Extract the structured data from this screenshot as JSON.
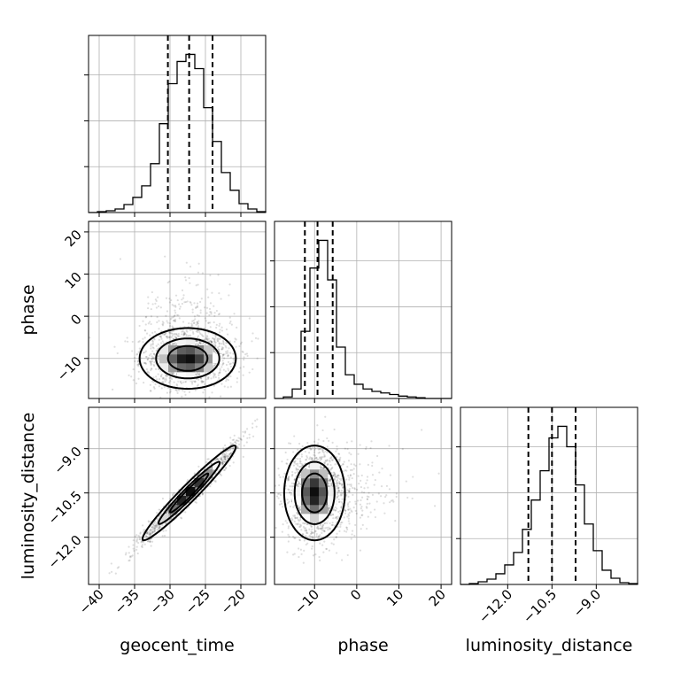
{
  "chart_data": {
    "type": "corner",
    "parameters": [
      "geocent_time",
      "phase",
      "luminosity_distance"
    ],
    "axis_labels": {
      "x": [
        "geocent_time",
        "phase",
        "luminosity_distance"
      ],
      "y_row2": "phase",
      "y_row3": "luminosity_distance"
    },
    "ranges": {
      "geocent_time": [
        -41.5,
        -16.5
      ],
      "phase": [
        -19.5,
        22.5
      ],
      "luminosity_distance": [
        -13.6,
        -7.6
      ]
    },
    "ticks": {
      "geocent_time": {
        "values": [
          -40,
          -35,
          -30,
          -25,
          -20
        ],
        "labels": [
          "−40",
          "−35",
          "−30",
          "−25",
          "−20"
        ]
      },
      "phase_x": {
        "values": [
          -10,
          0,
          10,
          20
        ],
        "labels": [
          "−10",
          "0",
          "10",
          "20"
        ]
      },
      "phase_y": {
        "values": [
          -10,
          0,
          10,
          20
        ],
        "labels": [
          "−10",
          "0",
          "10",
          "20"
        ]
      },
      "luminosity_distance_x": {
        "values": [
          -12.0,
          -10.5,
          -9.0
        ],
        "labels": [
          "−12.0",
          "−10.5",
          "−9.0"
        ]
      },
      "luminosity_distance_y": {
        "values": [
          -12.0,
          -10.5,
          -9.0
        ],
        "labels": [
          "−12.0",
          "−10.5",
          "−9.0"
        ]
      }
    },
    "histograms": {
      "geocent_time": {
        "bin_edges": [
          -41.5,
          -40.25,
          -39.0,
          -37.75,
          -36.5,
          -35.25,
          -34.0,
          -32.75,
          -31.5,
          -30.25,
          -29.0,
          -27.75,
          -26.5,
          -25.25,
          -24.0,
          -22.75,
          -21.5,
          -20.25,
          -19.0,
          -17.75,
          -16.5
        ],
        "counts": [
          0,
          1,
          2,
          4,
          9,
          17,
          30,
          55,
          100,
          145,
          170,
          178,
          162,
          118,
          80,
          45,
          25,
          10,
          4,
          1
        ],
        "quantiles": [
          -30.3,
          -27.3,
          -24.0
        ]
      },
      "phase": {
        "bin_edges": [
          -19.5,
          -17.4,
          -15.3,
          -13.2,
          -11.1,
          -9.0,
          -6.9,
          -4.8,
          -2.7,
          -0.6,
          1.5,
          3.6,
          5.7,
          7.8,
          9.9,
          12.0,
          14.1,
          16.2,
          18.3,
          20.4,
          22.5
        ],
        "counts": [
          0,
          2,
          12,
          85,
          165,
          200,
          150,
          65,
          30,
          18,
          12,
          9,
          7,
          5,
          3,
          2,
          1,
          0,
          0,
          0
        ],
        "quantiles": [
          -12.3,
          -9.3,
          -5.7
        ]
      },
      "luminosity_distance": {
        "bin_edges": [
          -13.6,
          -13.3,
          -13.0,
          -12.7,
          -12.4,
          -12.1,
          -11.8,
          -11.5,
          -11.2,
          -10.9,
          -10.6,
          -10.3,
          -10.0,
          -9.7,
          -9.4,
          -9.1,
          -8.8,
          -8.5,
          -8.2,
          -7.9,
          -7.6
        ],
        "counts": [
          0,
          1,
          3,
          6,
          12,
          22,
          36,
          62,
          95,
          128,
          165,
          178,
          155,
          112,
          68,
          38,
          16,
          7,
          2,
          1
        ],
        "quantiles": [
          -11.3,
          -10.5,
          -9.7
        ]
      }
    },
    "pairs": [
      {
        "x": "geocent_time",
        "y": "phase",
        "mean": [
          -27.5,
          -10.0
        ],
        "sd": [
          3.3,
          3.5
        ],
        "correlation": 0.0,
        "n_points": 1500,
        "levels": [
          0.12,
          0.4,
          0.7
        ]
      },
      {
        "x": "geocent_time",
        "y": "luminosity_distance",
        "mean": [
          -27.3,
          -10.5
        ],
        "sd": [
          3.2,
          0.78
        ],
        "correlation": 0.97,
        "n_points": 1500,
        "levels": [
          0.12,
          0.4,
          0.7
        ]
      },
      {
        "x": "phase",
        "y": "luminosity_distance",
        "mean": [
          -10.0,
          -10.5
        ],
        "sd": [
          3.5,
          0.78
        ],
        "correlation": 0.0,
        "n_points": 1500,
        "levels": [
          0.12,
          0.4,
          0.7
        ]
      }
    ],
    "grid": true
  }
}
